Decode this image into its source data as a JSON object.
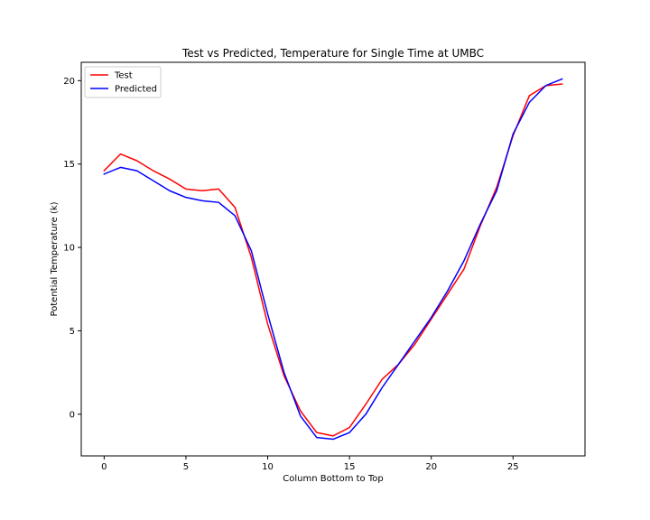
{
  "chart_data": {
    "type": "line",
    "title": "Test vs Predicted, Temperature for Single Time at UMBC",
    "xlabel": "Column Bottom to Top",
    "ylabel": "Potential Temperature (k)",
    "xlim": [
      -1.4,
      29.4
    ],
    "ylim": [
      -2.5,
      21.1
    ],
    "xticks": [
      0,
      5,
      10,
      15,
      20,
      25
    ],
    "yticks": [
      0,
      5,
      10,
      15,
      20
    ],
    "legend_position": "upper-left",
    "grid": false,
    "x": [
      0,
      1,
      2,
      3,
      4,
      5,
      6,
      7,
      8,
      9,
      10,
      11,
      12,
      13,
      14,
      15,
      16,
      17,
      18,
      19,
      20,
      21,
      22,
      23,
      24,
      25,
      26,
      27,
      28
    ],
    "series": [
      {
        "name": "Test",
        "color": "#ff0000",
        "values": [
          14.6,
          15.6,
          15.2,
          14.6,
          14.1,
          13.5,
          13.4,
          13.5,
          12.4,
          9.4,
          5.4,
          2.3,
          0.2,
          -1.1,
          -1.3,
          -0.8,
          0.6,
          2.1,
          3.0,
          4.2,
          5.7,
          7.2,
          8.7,
          11.3,
          13.6,
          16.7,
          19.1,
          19.7,
          19.8
        ]
      },
      {
        "name": "Predicted",
        "color": "#0000ff",
        "values": [
          14.4,
          14.8,
          14.6,
          14.0,
          13.4,
          13.0,
          12.8,
          12.7,
          11.9,
          9.8,
          6.0,
          2.5,
          -0.1,
          -1.4,
          -1.5,
          -1.1,
          0.0,
          1.6,
          3.0,
          4.4,
          5.8,
          7.4,
          9.2,
          11.4,
          13.4,
          16.8,
          18.7,
          19.7,
          20.1
        ]
      }
    ]
  }
}
